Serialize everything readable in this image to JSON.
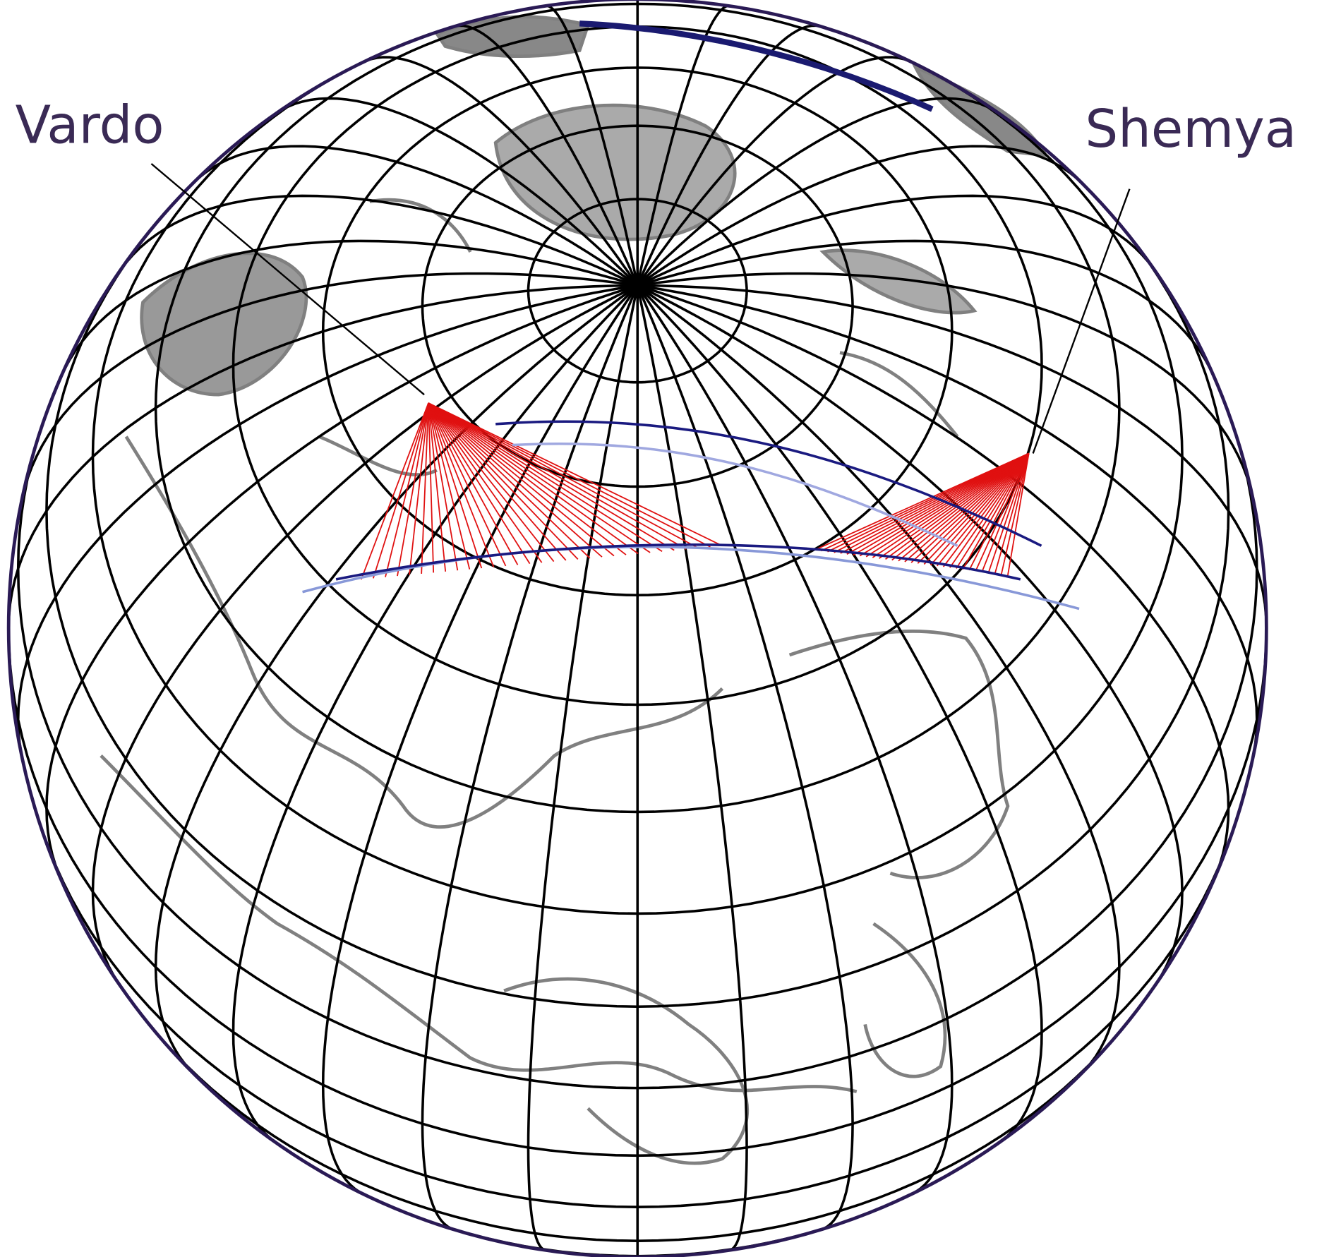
{
  "labels": {
    "vardo": "Vardo",
    "shemya": "Shemya"
  }
}
